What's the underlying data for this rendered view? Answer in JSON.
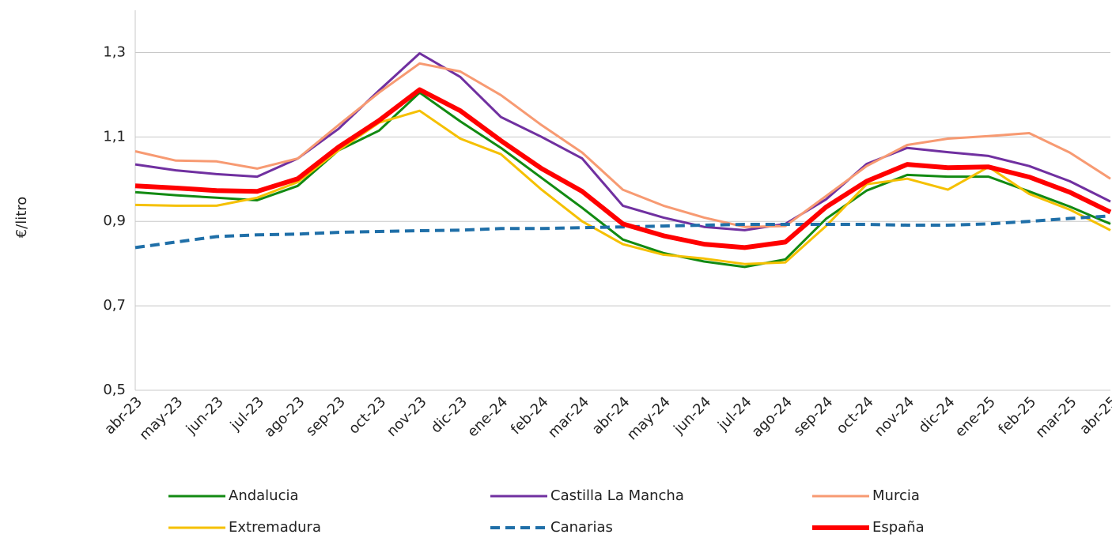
{
  "chart_data": {
    "type": "line",
    "y_label": "€/litro",
    "categories": [
      "abr-23",
      "may-23",
      "jun-23",
      "jul-23",
      "ago-23",
      "sep-23",
      "oct-23",
      "nov-23",
      "dic-23",
      "ene-24",
      "feb-24",
      "mar-24",
      "abr-24",
      "may-24",
      "jun-24",
      "jul-24",
      "ago-24",
      "sep-24",
      "oct-24",
      "nov-24",
      "dic-24",
      "ene-25",
      "feb-25",
      "mar-25",
      "abr-25"
    ],
    "ylim": [
      0.5,
      1.4
    ],
    "yticks": [
      {
        "value": 0.5,
        "label": "0,5"
      },
      {
        "value": 0.7,
        "label": "0,7"
      },
      {
        "value": 0.9,
        "label": "0,9"
      },
      {
        "value": 1.1,
        "label": "1,1"
      },
      {
        "value": 1.3,
        "label": "1,3"
      }
    ],
    "grid": true,
    "legend": "bottom",
    "series": [
      {
        "name": "Andalucia",
        "color": "#128a12",
        "linewidth": 3,
        "linestyle": "solid",
        "values": [
          0.969,
          0.962,
          0.956,
          0.95,
          0.984,
          1.068,
          1.115,
          1.205,
          1.137,
          1.074,
          1.003,
          0.932,
          0.857,
          0.825,
          0.805,
          0.792,
          0.81,
          0.906,
          0.973,
          1.01,
          1.006,
          1.006,
          0.971,
          0.935,
          0.894
        ]
      },
      {
        "name": "Castilla La Mancha",
        "color": "#7030a0",
        "linewidth": 3,
        "linestyle": "solid",
        "values": [
          1.035,
          1.021,
          1.012,
          1.006,
          1.049,
          1.119,
          1.21,
          1.298,
          1.242,
          1.147,
          1.1,
          1.049,
          0.937,
          0.909,
          0.887,
          0.879,
          0.894,
          0.952,
          1.036,
          1.074,
          1.064,
          1.055,
          1.031,
          0.995,
          0.947
        ]
      },
      {
        "name": "Murcia",
        "color": "#f79a72",
        "linewidth": 3,
        "linestyle": "solid",
        "values": [
          1.066,
          1.044,
          1.042,
          1.025,
          1.049,
          1.128,
          1.205,
          1.274,
          1.255,
          1.199,
          1.128,
          1.063,
          0.975,
          0.937,
          0.909,
          0.887,
          0.889,
          0.96,
          1.031,
          1.081,
          1.096,
          1.102,
          1.109,
          1.063,
          1.001
        ]
      },
      {
        "name": "Extremadura",
        "color": "#f5c000",
        "linewidth": 3,
        "linestyle": "solid",
        "values": [
          0.939,
          0.937,
          0.937,
          0.956,
          0.993,
          1.068,
          1.134,
          1.162,
          1.096,
          1.059,
          0.975,
          0.9,
          0.846,
          0.821,
          0.812,
          0.799,
          0.803,
          0.889,
          0.988,
          1.001,
          0.975,
          1.029,
          0.965,
          0.928,
          0.879
        ]
      },
      {
        "name": "Canarias",
        "color": "#1f6fa8",
        "linewidth": 4,
        "linestyle": "dashed",
        "values": [
          0.838,
          0.851,
          0.864,
          0.868,
          0.87,
          0.874,
          0.876,
          0.878,
          0.879,
          0.883,
          0.883,
          0.885,
          0.887,
          0.889,
          0.891,
          0.893,
          0.893,
          0.893,
          0.893,
          0.891,
          0.891,
          0.894,
          0.9,
          0.907,
          0.913
        ]
      },
      {
        "name": "España",
        "color": "#ff0000",
        "linewidth": 6,
        "linestyle": "solid",
        "values": [
          0.984,
          0.979,
          0.973,
          0.971,
          1.001,
          1.076,
          1.139,
          1.212,
          1.162,
          1.091,
          1.025,
          0.971,
          0.894,
          0.866,
          0.846,
          0.838,
          0.851,
          0.934,
          0.995,
          1.035,
          1.027,
          1.029,
          1.005,
          0.969,
          0.922
        ]
      }
    ]
  }
}
